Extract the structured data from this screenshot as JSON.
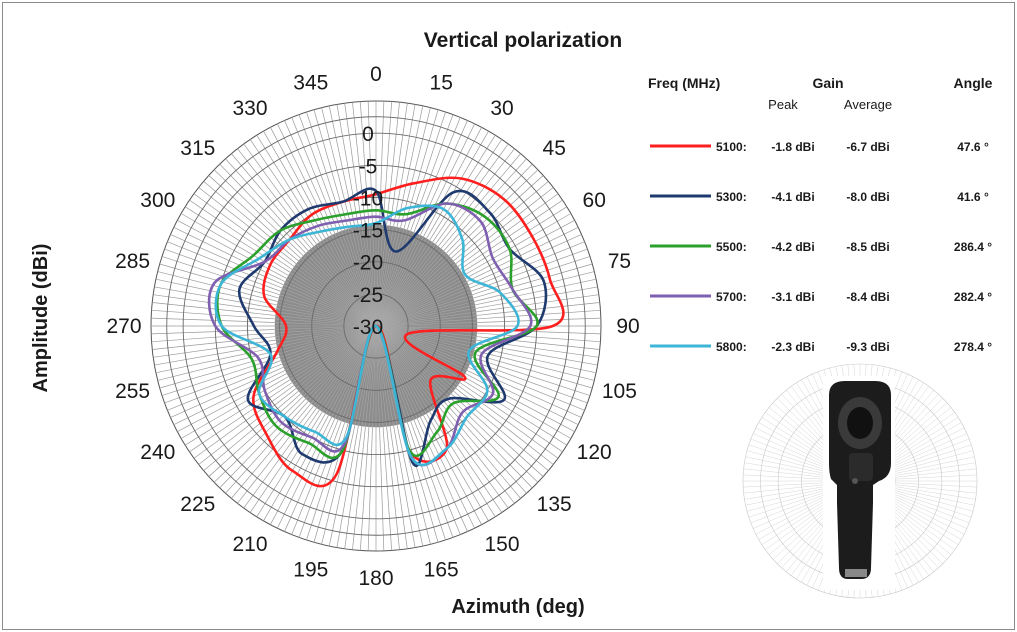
{
  "chart_data": {
    "type": "polar-line",
    "title": "Vertical polarization",
    "xlabel": "Azimuth (deg)",
    "ylabel": "Amplitude (dBi)",
    "angle_ticks": [
      "0",
      "15",
      "30",
      "45",
      "60",
      "75",
      "90",
      "105",
      "120",
      "135",
      "150",
      "165",
      "180",
      "195",
      "210",
      "225",
      "240",
      "255",
      "270",
      "285",
      "300",
      "315",
      "330",
      "345"
    ],
    "radial_ticks": [
      {
        "label": "0",
        "value": 0
      },
      {
        "label": "-5",
        "value": -5
      },
      {
        "label": "-10",
        "value": -10
      },
      {
        "label": "-15",
        "value": -15
      },
      {
        "label": "-20",
        "value": -20
      },
      {
        "label": "-25",
        "value": -25
      },
      {
        "label": "-30",
        "value": -30
      }
    ],
    "r_range": [
      -30,
      5
    ],
    "grid": true,
    "legend_headers": {
      "freq": "Freq (MHz)",
      "gain": "Gain",
      "angle": "Angle",
      "peak": "Peak",
      "average": "Average"
    },
    "series": [
      {
        "name": "5100:",
        "peak": "-1.8 dBi",
        "average": "-6.7 dBi",
        "angle": "47.6 °",
        "color": "#ff1f1f",
        "az": [
          0,
          15,
          30,
          45,
          60,
          75,
          90,
          105,
          120,
          135,
          150,
          165,
          180,
          195,
          210,
          225,
          240,
          255,
          270,
          285,
          300,
          315,
          330,
          345
        ],
        "values": [
          -9.5,
          -7,
          -3.5,
          -2,
          -2,
          -2,
          -2.5,
          -25,
          -14,
          -18,
          -8,
          -10,
          -30,
          -6,
          -4,
          -6,
          -8,
          -14,
          -16,
          -12,
          -11,
          -11,
          -10,
          -10
        ]
      },
      {
        "name": "5300:",
        "peak": "-4.1 dBi",
        "average": "-8.0 dBi",
        "angle": "41.6 °",
        "color": "#1f3a6e",
        "az": [
          0,
          15,
          30,
          45,
          60,
          75,
          90,
          105,
          120,
          135,
          150,
          165,
          180,
          195,
          210,
          225,
          240,
          255,
          270,
          285,
          300,
          315,
          330,
          345
        ],
        "values": [
          -9,
          -18,
          -6,
          -5,
          -6,
          -3,
          -5,
          -12,
          -7,
          -14,
          -13,
          -8,
          -30,
          -10,
          -7,
          -10,
          -7,
          -13,
          -11,
          -8,
          -10,
          -9,
          -9,
          -10
        ]
      },
      {
        "name": "5500:",
        "peak": "-4.2 dBi",
        "average": "-8.5 dBi",
        "angle": "286.4 °",
        "color": "#2ca02c",
        "az": [
          0,
          15,
          30,
          45,
          60,
          75,
          90,
          105,
          120,
          135,
          150,
          165,
          180,
          195,
          210,
          225,
          240,
          255,
          270,
          285,
          300,
          315,
          330,
          345
        ],
        "values": [
          -12,
          -12,
          -8,
          -6,
          -6,
          -8,
          -5,
          -14,
          -8,
          -13,
          -11,
          -10,
          -30,
          -10,
          -9,
          -8,
          -9,
          -10,
          -6,
          -5,
          -8,
          -9,
          -11,
          -12
        ]
      },
      {
        "name": "5700:",
        "peak": "-3.1 dBi",
        "average": "-8.4 dBi",
        "angle": "282.4 °",
        "color": "#7f5fb0",
        "az": [
          0,
          15,
          30,
          45,
          60,
          75,
          90,
          105,
          120,
          135,
          150,
          165,
          180,
          195,
          210,
          225,
          240,
          255,
          270,
          285,
          300,
          315,
          330,
          345
        ],
        "values": [
          -13,
          -13,
          -8,
          -7,
          -9,
          -8,
          -6,
          -13,
          -9,
          -11,
          -8,
          -9,
          -30,
          -11,
          -10,
          -9,
          -10,
          -11,
          -5,
          -4,
          -10,
          -11,
          -12,
          -13
        ]
      },
      {
        "name": "5800:",
        "peak": "-2.3 dBi",
        "average": "-9.3 dBi",
        "angle": "278.4 °",
        "color": "#3db5d6",
        "az": [
          0,
          15,
          30,
          45,
          60,
          75,
          90,
          105,
          120,
          135,
          150,
          165,
          180,
          195,
          210,
          225,
          240,
          255,
          270,
          285,
          300,
          315,
          330,
          345
        ],
        "values": [
          -14,
          -11,
          -9,
          -11,
          -14,
          -10,
          -8,
          -15,
          -10,
          -10,
          -8,
          -9,
          -30,
          -12,
          -11,
          -10,
          -9,
          -13,
          -6,
          -5,
          -9,
          -11,
          -13,
          -14
        ]
      }
    ]
  }
}
